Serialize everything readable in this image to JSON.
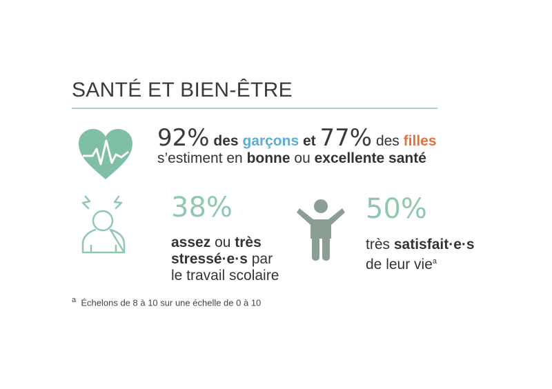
{
  "title": "SANTÉ ET BIEN-ÊTRE",
  "health": {
    "boys_pct": "92%",
    "boys_text": "des",
    "boys_word": "garçons",
    "and": "et",
    "girls_pct": "77%",
    "girls_text": "des",
    "girls_word": "filles",
    "line2_a": "s’estiment en",
    "line2_b": "bonne",
    "line2_c": "ou",
    "line2_d": "excellente santé"
  },
  "stress": {
    "pct": "38%",
    "w1": "assez",
    "w2": "ou",
    "w3": "très",
    "w4": "stressé·e·s",
    "w5": "par",
    "w6": "le travail scolaire"
  },
  "satisfaction": {
    "pct": "50%",
    "w1": "très",
    "w2": "satisfait·e·s",
    "w3": "de leur vie",
    "sup": "a"
  },
  "footnote": {
    "sup": "a",
    "text": "Échelons de 8 à 10 sur une échelle de 0 à 10"
  },
  "colors": {
    "heart": "#7fbfa5",
    "accent": "#8ec9ae",
    "person": "#8a9e94",
    "boys": "#5aaed6",
    "girls": "#e8703a"
  }
}
